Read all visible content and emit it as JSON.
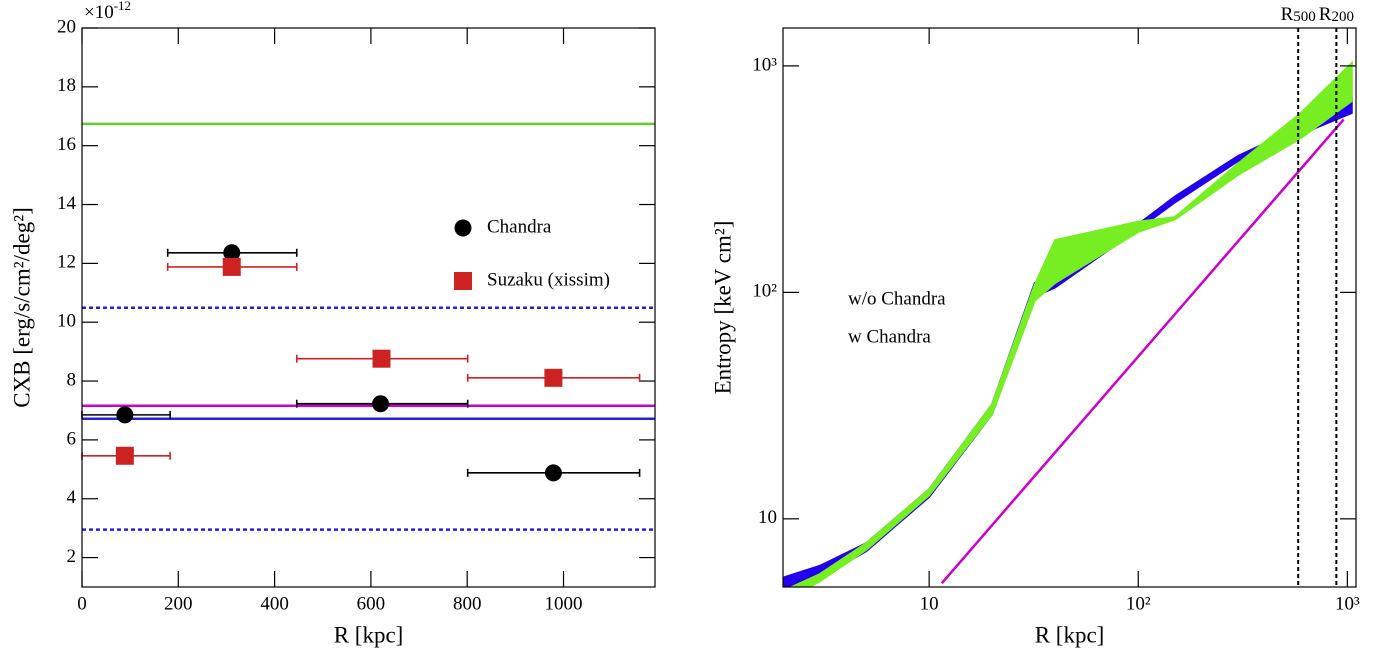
{
  "chart_data": [
    {
      "type": "scatter",
      "xlabel": "R [kpc]",
      "ylabel": "CXB [erg/s/cm²/deg²]",
      "y_multiplier": "×10",
      "y_multiplier_exponent": "-12",
      "xlim": [
        0,
        1190
      ],
      "ylim": [
        1,
        20
      ],
      "xticks": [
        0,
        200,
        400,
        600,
        800,
        1000
      ],
      "yticks": [
        2,
        4,
        6,
        8,
        10,
        12,
        14,
        16,
        18,
        20
      ],
      "series": [
        {
          "name": "Chandra",
          "color": "#000000",
          "marker": "circle",
          "x": [
            89,
            311,
            620,
            979
          ],
          "x_low": [
            0,
            178,
            446,
            801
          ],
          "x_high": [
            183,
            446,
            801,
            1158
          ],
          "values": [
            6.85,
            12.36,
            7.23,
            4.88
          ]
        },
        {
          "name": "Suzaku (xissim)",
          "color": "#cc2222",
          "marker": "square",
          "x": [
            89,
            311,
            622,
            979
          ],
          "x_low": [
            0,
            178,
            446,
            801
          ],
          "x_high": [
            183,
            446,
            801,
            1158
          ],
          "values": [
            5.46,
            11.88,
            8.76,
            8.11
          ]
        }
      ],
      "hlines": [
        {
          "value": 16.74,
          "color": "#66cc33",
          "dashed": false
        },
        {
          "value": 10.49,
          "color": "#2222dd",
          "dashed": true
        },
        {
          "value": 7.16,
          "color": "#cc00cc",
          "dashed": false
        },
        {
          "value": 6.72,
          "color": "#2222dd",
          "dashed": false
        },
        {
          "value": 2.95,
          "color": "#2222dd",
          "dashed": true
        }
      ]
    },
    {
      "type": "band",
      "xlabel": "R [kpc]",
      "ylabel": "Entropy [keV cm²]",
      "log_x": true,
      "log_y": true,
      "xlim": [
        2,
        1100
      ],
      "ylim": [
        5,
        1470
      ],
      "xticks": [
        10,
        {
          "value": 100,
          "label": "10²"
        },
        {
          "value": 1000,
          "label": "10³"
        }
      ],
      "yticks": [
        10,
        {
          "value": 100,
          "label": "10²"
        },
        {
          "value": 1000,
          "label": "10³"
        }
      ],
      "x": [
        2,
        3,
        5,
        10,
        20,
        32,
        40,
        100,
        150,
        300,
        600,
        1050
      ],
      "series": [
        {
          "name": "w/o Chandra",
          "color": "#2200ee",
          "low": [
            4.8,
            5.5,
            7.2,
            12.5,
            29,
            96,
            105,
            190,
            250,
            380,
            500,
            620
          ],
          "high": [
            5.5,
            6.2,
            7.8,
            13.5,
            32,
            110,
            115,
            200,
            265,
            400,
            540,
            720
          ]
        },
        {
          "name": "w Chandra",
          "color": "#77ee22",
          "low": [
            4.3,
            5.3,
            7.3,
            12.7,
            29,
            92,
            110,
            185,
            210,
            330,
            480,
            700
          ],
          "high": [
            4.8,
            5.7,
            7.8,
            13.5,
            32,
            108,
            170,
            205,
            215,
            370,
            620,
            1030
          ]
        }
      ],
      "lines": [
        {
          "color": "#cc00cc",
          "x": [
            11.5,
            960
          ],
          "values": [
            5.2,
            580
          ]
        }
      ],
      "vlines": [
        {
          "value": 582,
          "label": "R",
          "label_sub": "500"
        },
        {
          "value": 886,
          "label": "R",
          "label_sub": "200"
        }
      ]
    }
  ]
}
